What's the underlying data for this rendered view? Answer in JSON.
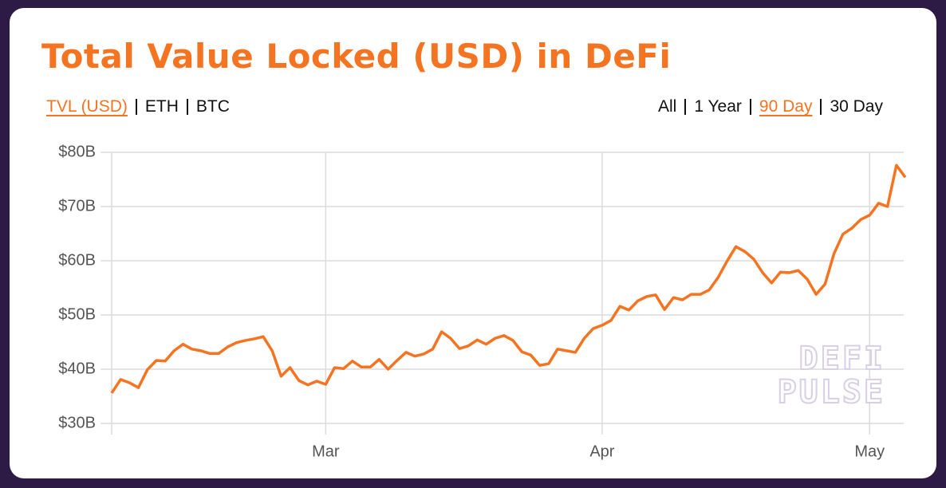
{
  "chart_data": {
    "type": "line",
    "title": "Total Value Locked (USD) in DeFi",
    "metrics": [
      "TVL (USD)",
      "ETH",
      "BTC"
    ],
    "active_metric": 0,
    "ranges": [
      "All",
      "1 Year",
      "90 Day",
      "30 Day"
    ],
    "active_range": 2,
    "watermark": [
      "DEFI",
      "PULSE"
    ],
    "color": "#f47421",
    "values": [
      35.6,
      38.1,
      37.5,
      36.6,
      39.9,
      41.6,
      41.5,
      43.4,
      44.6,
      43.7,
      43.4,
      42.9,
      42.9,
      44.1,
      44.9,
      45.3,
      45.6,
      46.0,
      43.4,
      38.7,
      40.3,
      37.9,
      37.1,
      37.8,
      37.2,
      40.3,
      40.1,
      41.5,
      40.4,
      40.4,
      41.8,
      40.0,
      41.6,
      43.1,
      42.4,
      42.8,
      43.7,
      46.9,
      45.7,
      43.8,
      44.3,
      45.4,
      44.6,
      45.7,
      46.2,
      45.3,
      43.2,
      42.6,
      40.7,
      41.0,
      43.7,
      43.4,
      43.1,
      45.7,
      47.5,
      48.1,
      49.0,
      51.6,
      50.9,
      52.6,
      53.4,
      53.7,
      51.0,
      53.2,
      52.8,
      53.8,
      53.8,
      54.6,
      56.9,
      59.9,
      62.6,
      61.7,
      60.3,
      57.8,
      55.9,
      57.9,
      57.8,
      58.2,
      56.6,
      53.8,
      55.7,
      61.3,
      64.9,
      66.0,
      67.6,
      68.4,
      70.6,
      70.0,
      77.6,
      75.4
    ],
    "xlim": [
      0,
      89
    ],
    "xticks": [
      {
        "value": 24,
        "label": "Mar"
      },
      {
        "value": 55,
        "label": "Apr"
      },
      {
        "value": 85,
        "label": "May"
      }
    ],
    "ylim": [
      30,
      80
    ],
    "yticks": [
      {
        "value": 30,
        "label": "$30B"
      },
      {
        "value": 40,
        "label": "$40B"
      },
      {
        "value": 50,
        "label": "$50B"
      },
      {
        "value": 60,
        "label": "$60B"
      },
      {
        "value": 70,
        "label": "$70B"
      },
      {
        "value": 80,
        "label": "$80B"
      }
    ],
    "grid": true
  }
}
